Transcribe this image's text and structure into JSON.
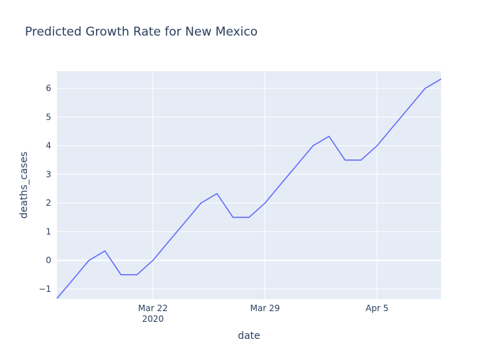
{
  "chart_data": {
    "type": "line",
    "title": "Predicted Growth Rate for New Mexico",
    "xlabel": "date",
    "ylabel": "deaths_cases",
    "xlim": [
      "2020-03-16",
      "2020-04-09"
    ],
    "ylim": [
      -1.35,
      6.6
    ],
    "x_ticks": [
      {
        "date": "2020-03-22",
        "label": "Mar 22",
        "sublabel": "2020"
      },
      {
        "date": "2020-03-29",
        "label": "Mar 29",
        "sublabel": ""
      },
      {
        "date": "2020-04-05",
        "label": "Apr 5",
        "sublabel": ""
      }
    ],
    "y_ticks": [
      -1,
      0,
      1,
      2,
      3,
      4,
      5,
      6
    ],
    "y_tick_labels": [
      "−1",
      "0",
      "1",
      "2",
      "3",
      "4",
      "5",
      "6"
    ],
    "grid": true,
    "line_color": "#636efa",
    "plot_background": "#e5ecf6",
    "series": [
      {
        "x": [
          "2020-03-16",
          "2020-03-17",
          "2020-03-18",
          "2020-03-19",
          "2020-03-20",
          "2020-03-21",
          "2020-03-22",
          "2020-03-23",
          "2020-03-24",
          "2020-03-25",
          "2020-03-26",
          "2020-03-27",
          "2020-03-28",
          "2020-03-29",
          "2020-03-30",
          "2020-03-31",
          "2020-04-01",
          "2020-04-02",
          "2020-04-03",
          "2020-04-04",
          "2020-04-05",
          "2020-04-06",
          "2020-04-07",
          "2020-04-08",
          "2020-04-09"
        ],
        "values": [
          -1.33,
          -0.67,
          0,
          0.33,
          -0.5,
          -0.5,
          0,
          0.67,
          1.33,
          2,
          2.33,
          1.5,
          1.5,
          2,
          2.67,
          3.33,
          4,
          4.33,
          3.5,
          3.5,
          4,
          4.67,
          5.33,
          6,
          6.33
        ]
      }
    ]
  }
}
